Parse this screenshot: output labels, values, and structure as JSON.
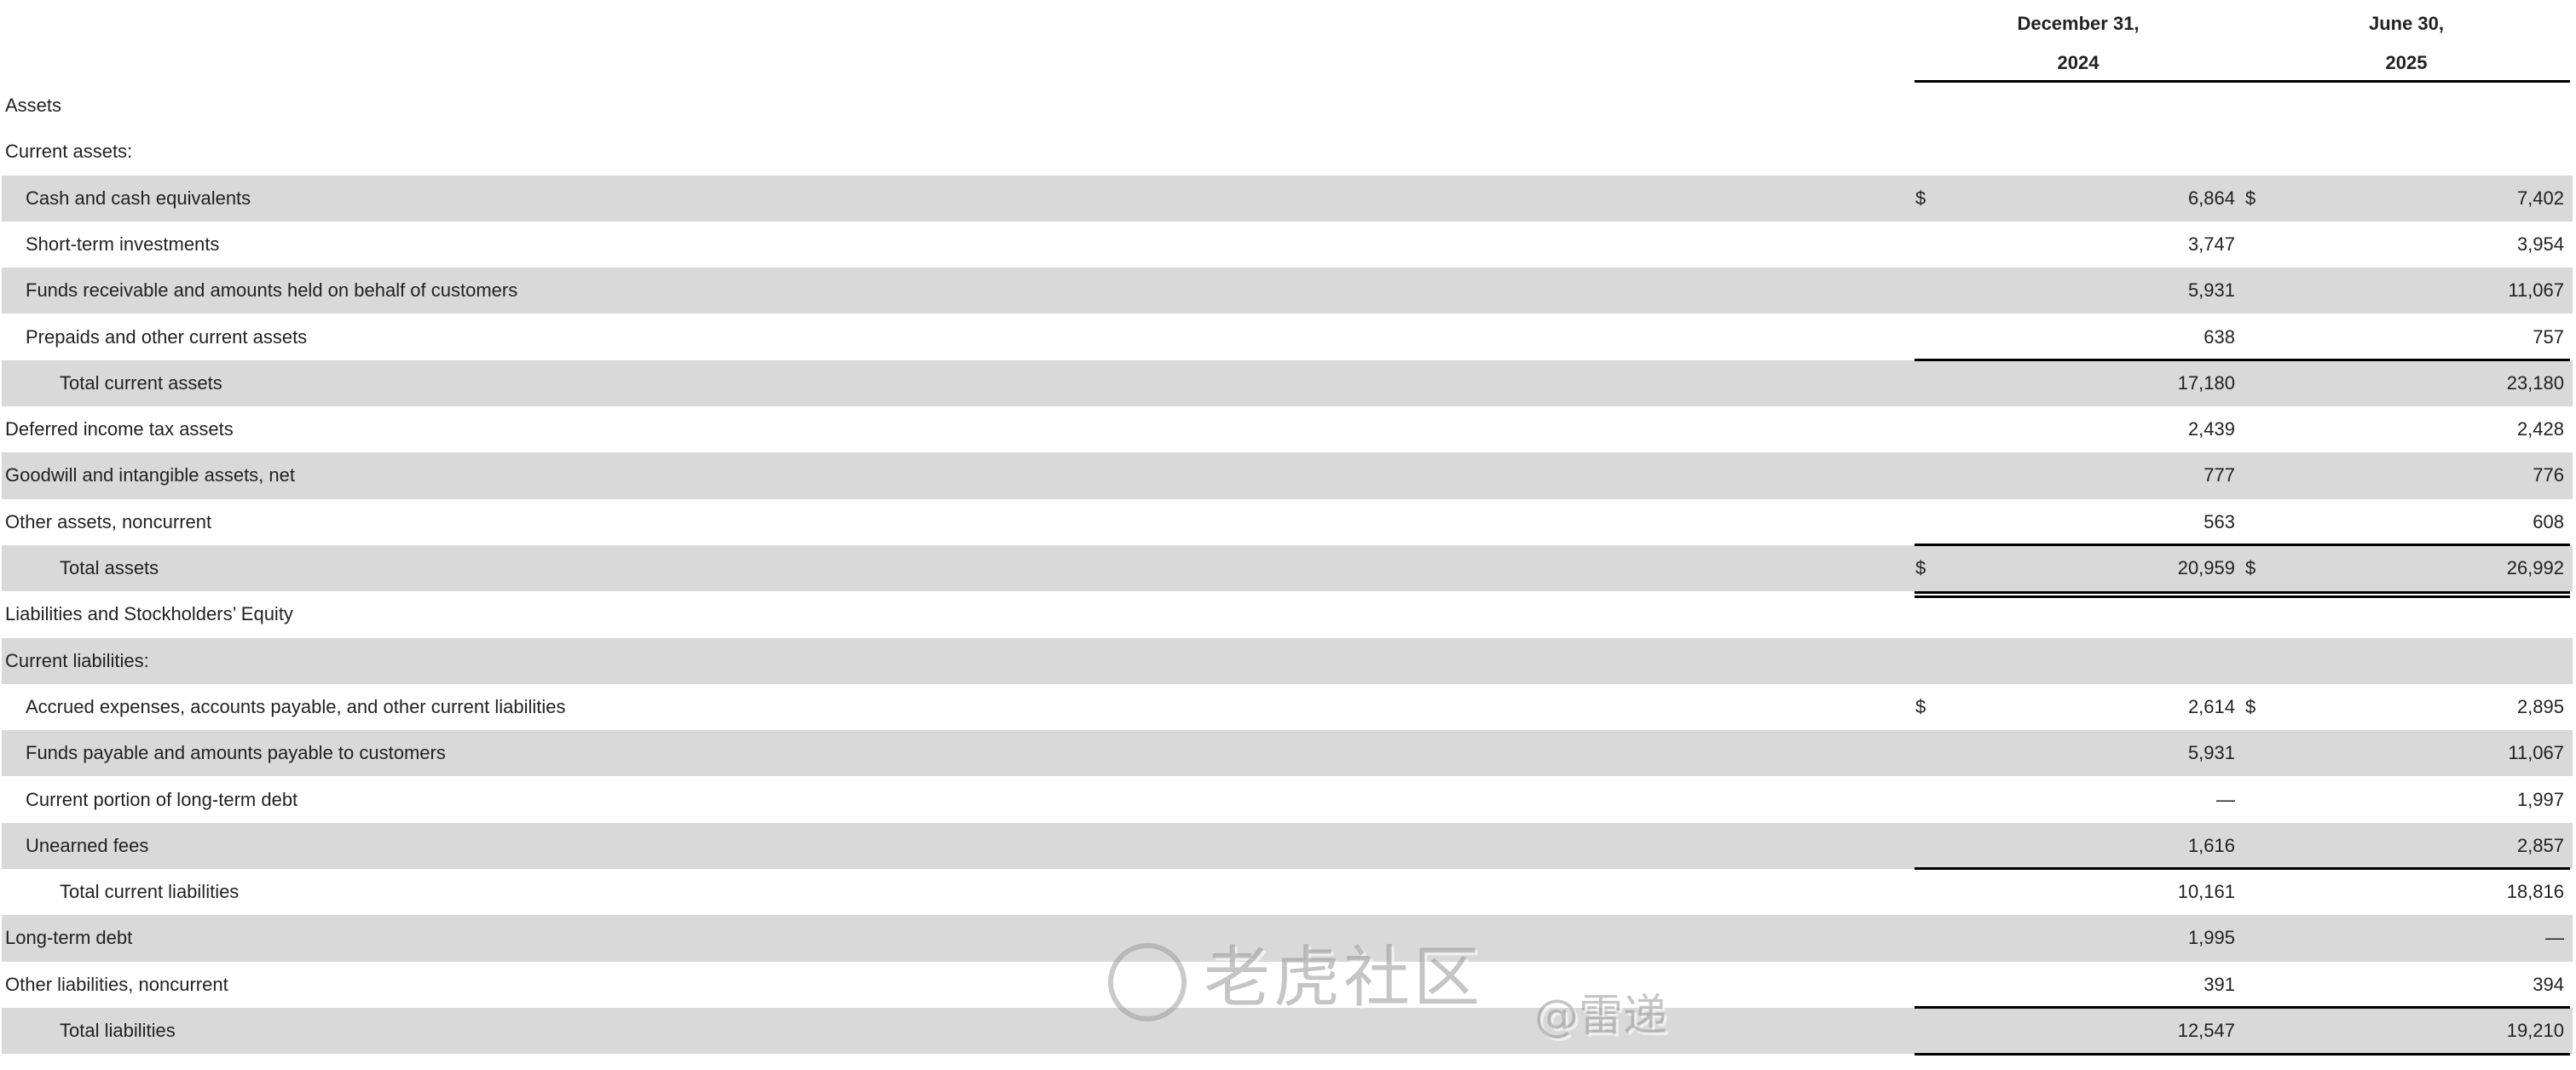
{
  "header": {
    "col1": {
      "line1": "December 31,",
      "line2": "2024"
    },
    "col2": {
      "line1": "June 30,",
      "line2": "2025"
    }
  },
  "rows": [
    {
      "label": "Assets",
      "indent": 0,
      "gray": false
    },
    {
      "label": "Current assets:",
      "indent": 0,
      "gray": false
    },
    {
      "label": "Cash and cash equivalents",
      "indent": 1,
      "gray": true,
      "cur1": "$",
      "v1": "6,864",
      "cur2": "$",
      "v2": "7,402"
    },
    {
      "label": "Short-term investments",
      "indent": 1,
      "gray": false,
      "v1": "3,747",
      "v2": "3,954"
    },
    {
      "label": "Funds receivable and amounts held on behalf of customers",
      "indent": 1,
      "gray": true,
      "v1": "5,931",
      "v2": "11,067"
    },
    {
      "label": "Prepaids and other current assets",
      "indent": 1,
      "gray": false,
      "v1": "638",
      "v2": "757"
    },
    {
      "label": "Total current assets",
      "indent": 2,
      "gray": true,
      "v1": "17,180",
      "v2": "23,180",
      "border_top": true
    },
    {
      "label": "Deferred income tax assets",
      "indent": 0,
      "gray": false,
      "v1": "2,439",
      "v2": "2,428"
    },
    {
      "label": "Goodwill and intangible assets, net",
      "indent": 0,
      "gray": true,
      "v1": "777",
      "v2": "776"
    },
    {
      "label": "Other assets, noncurrent",
      "indent": 0,
      "gray": false,
      "v1": "563",
      "v2": "608"
    },
    {
      "label": "Total assets",
      "indent": 2,
      "gray": true,
      "cur1": "$",
      "v1": "20,959",
      "cur2": "$",
      "v2": "26,992",
      "border_top": true,
      "double_bottom": true
    },
    {
      "label": "Liabilities and Stockholders’ Equity",
      "indent": 0,
      "gray": false
    },
    {
      "label": "Current liabilities:",
      "indent": 0,
      "gray": true
    },
    {
      "label": "Accrued expenses, accounts payable, and other current liabilities",
      "indent": 1,
      "gray": false,
      "cur1": "$",
      "v1": "2,614",
      "cur2": "$",
      "v2": "2,895"
    },
    {
      "label": "Funds payable and amounts payable to customers",
      "indent": 1,
      "gray": true,
      "v1": "5,931",
      "v2": "11,067"
    },
    {
      "label": "Current portion of long-term debt",
      "indent": 1,
      "gray": false,
      "v1": "—",
      "v2": "1,997"
    },
    {
      "label": "Unearned fees",
      "indent": 1,
      "gray": true,
      "v1": "1,616",
      "v2": "2,857"
    },
    {
      "label": "Total current liabilities",
      "indent": 2,
      "gray": false,
      "v1": "10,161",
      "v2": "18,816",
      "border_top": true
    },
    {
      "label": "Long-term debt",
      "indent": 0,
      "gray": true,
      "v1": "1,995",
      "v2": "—"
    },
    {
      "label": "Other liabilities, noncurrent",
      "indent": 0,
      "gray": false,
      "v1": "391",
      "v2": "394"
    },
    {
      "label": "Total liabilities",
      "indent": 2,
      "gray": true,
      "v1": "12,547",
      "v2": "19,210",
      "border_top": true,
      "border_bottom": true
    }
  ],
  "watermark": {
    "main": "老虎社区",
    "handle": "@雷递"
  }
}
